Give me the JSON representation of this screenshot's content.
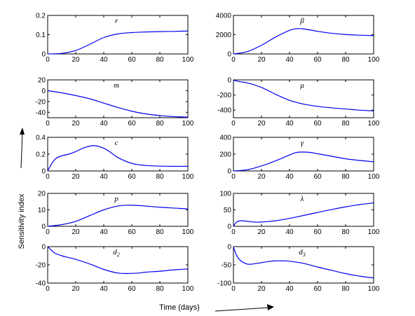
{
  "figure": {
    "ylabel": "Sensitivity index",
    "xlabel": "Time (days)"
  },
  "chart_data": [
    {
      "type": "line",
      "title": "r",
      "xlim": [
        0,
        100
      ],
      "ylim": [
        0,
        0.2
      ],
      "xticks": [
        0,
        20,
        40,
        60,
        80,
        100
      ],
      "yticks": [
        0,
        0.1,
        0.2
      ],
      "ytick_labels": [
        "0",
        "0.1",
        "0.2"
      ],
      "color": "#0000ee",
      "x": [
        0,
        10,
        20,
        30,
        40,
        50,
        60,
        70,
        80,
        90,
        100
      ],
      "y": [
        0,
        0.003,
        0.018,
        0.05,
        0.085,
        0.104,
        0.111,
        0.114,
        0.116,
        0.117,
        0.119
      ]
    },
    {
      "type": "line",
      "title": "β",
      "xlim": [
        0,
        100
      ],
      "ylim": [
        0,
        4000
      ],
      "xticks": [
        0,
        20,
        40,
        60,
        80,
        100
      ],
      "yticks": [
        0,
        2000,
        4000
      ],
      "ytick_labels": [
        "0",
        "2000",
        "4000"
      ],
      "color": "#0000ee",
      "x": [
        0,
        10,
        20,
        30,
        40,
        45,
        50,
        60,
        70,
        80,
        90,
        100
      ],
      "y": [
        0,
        250,
        900,
        1750,
        2450,
        2620,
        2600,
        2350,
        2150,
        2020,
        1950,
        1900
      ]
    },
    {
      "type": "line",
      "title": "m",
      "xlim": [
        0,
        100
      ],
      "ylim": [
        -50,
        20
      ],
      "xticks": [
        0,
        20,
        40,
        60,
        80,
        100
      ],
      "yticks": [
        -40,
        -20,
        0,
        20
      ],
      "ytick_labels": [
        "-40",
        "-20",
        "0",
        "20"
      ],
      "color": "#0000ee",
      "x": [
        0,
        10,
        20,
        30,
        40,
        50,
        60,
        70,
        80,
        90,
        100
      ],
      "y": [
        0,
        -4,
        -9,
        -15,
        -23,
        -31,
        -38,
        -43,
        -46,
        -48,
        -49
      ]
    },
    {
      "type": "line",
      "title": "μ",
      "xlim": [
        0,
        100
      ],
      "ylim": [
        -500,
        0
      ],
      "xticks": [
        0,
        20,
        40,
        60,
        80,
        100
      ],
      "yticks": [
        -400,
        -200,
        0
      ],
      "ytick_labels": [
        "-400",
        "-200",
        "0"
      ],
      "color": "#0000ee",
      "x": [
        0,
        5,
        10,
        20,
        30,
        40,
        50,
        60,
        70,
        80,
        90,
        100
      ],
      "y": [
        -5,
        -25,
        -40,
        -100,
        -190,
        -270,
        -320,
        -350,
        -370,
        -385,
        -400,
        -410
      ]
    },
    {
      "type": "line",
      "title": "c",
      "xlim": [
        0,
        100
      ],
      "ylim": [
        0,
        0.4
      ],
      "xticks": [
        0,
        20,
        40,
        60,
        80,
        100
      ],
      "yticks": [
        0,
        0.2,
        0.4
      ],
      "ytick_labels": [
        "0",
        "0.2",
        "0.4"
      ],
      "color": "#0000ee",
      "x": [
        0,
        3,
        6,
        10,
        15,
        20,
        25,
        30,
        34,
        40,
        45,
        50,
        60,
        70,
        80,
        90,
        100
      ],
      "y": [
        0,
        0.09,
        0.15,
        0.18,
        0.2,
        0.23,
        0.27,
        0.295,
        0.3,
        0.27,
        0.22,
        0.16,
        0.09,
        0.065,
        0.058,
        0.055,
        0.055
      ]
    },
    {
      "type": "line",
      "title": "γ",
      "xlim": [
        0,
        100
      ],
      "ylim": [
        0,
        400
      ],
      "xticks": [
        0,
        20,
        40,
        60,
        80,
        100
      ],
      "yticks": [
        0,
        200,
        400
      ],
      "ytick_labels": [
        "0",
        "200",
        "400"
      ],
      "color": "#0000ee",
      "x": [
        0,
        10,
        20,
        30,
        40,
        45,
        50,
        55,
        60,
        70,
        80,
        90,
        100
      ],
      "y": [
        0,
        15,
        60,
        120,
        190,
        220,
        225,
        220,
        205,
        175,
        145,
        125,
        110
      ]
    },
    {
      "type": "line",
      "title": "p",
      "xlim": [
        0,
        100
      ],
      "ylim": [
        0,
        20
      ],
      "xticks": [
        0,
        20,
        40,
        60,
        80,
        100
      ],
      "yticks": [
        0,
        10,
        20
      ],
      "ytick_labels": [
        "0",
        "10",
        "20"
      ],
      "color": "#0000ee",
      "x": [
        0,
        10,
        20,
        30,
        40,
        50,
        57,
        65,
        70,
        80,
        90,
        100
      ],
      "y": [
        0,
        1,
        3,
        6.5,
        10,
        12.3,
        12.8,
        12.6,
        12.3,
        11.6,
        11.1,
        10.6
      ]
    },
    {
      "type": "line",
      "title": "λ",
      "xlim": [
        0,
        100
      ],
      "ylim": [
        0,
        100
      ],
      "xticks": [
        0,
        20,
        40,
        60,
        80,
        100
      ],
      "yticks": [
        0,
        50,
        100
      ],
      "ytick_labels": [
        "0",
        "50",
        "100"
      ],
      "color": "#0000ee",
      "x": [
        0,
        2,
        5,
        10,
        15,
        20,
        30,
        40,
        50,
        60,
        70,
        80,
        90,
        100
      ],
      "y": [
        0,
        12,
        17,
        15,
        13,
        13,
        17,
        24,
        33,
        42,
        51,
        59,
        66,
        71
      ]
    },
    {
      "type": "line",
      "title": "d2",
      "title_base": "d",
      "title_sub": "2",
      "xlim": [
        0,
        100
      ],
      "ylim": [
        -40,
        0
      ],
      "xticks": [
        0,
        20,
        40,
        60,
        80,
        100
      ],
      "yticks": [
        -40,
        -20,
        0
      ],
      "ytick_labels": [
        "-40",
        "-20",
        "0"
      ],
      "color": "#0000ee",
      "x": [
        0,
        2,
        5,
        10,
        15,
        20,
        30,
        40,
        50,
        57,
        65,
        70,
        80,
        90,
        100
      ],
      "y": [
        0,
        -3,
        -7,
        -10,
        -12,
        -14,
        -19,
        -25,
        -29,
        -29.5,
        -29,
        -28,
        -27,
        -25.5,
        -24.5
      ]
    },
    {
      "type": "line",
      "title": "d3",
      "title_base": "d",
      "title_sub": "3",
      "xlim": [
        0,
        100
      ],
      "ylim": [
        -100,
        0
      ],
      "xticks": [
        0,
        20,
        40,
        60,
        80,
        100
      ],
      "yticks": [
        -100,
        -50,
        0
      ],
      "ytick_labels": [
        "-100",
        "-50",
        "0"
      ],
      "color": "#0000ee",
      "x": [
        0,
        2,
        5,
        10,
        15,
        20,
        25,
        30,
        35,
        40,
        50,
        60,
        70,
        80,
        90,
        100
      ],
      "y": [
        0,
        -22,
        -38,
        -48,
        -47,
        -44,
        -41,
        -39,
        -39,
        -40,
        -46,
        -56,
        -65,
        -74,
        -81,
        -86
      ]
    }
  ]
}
